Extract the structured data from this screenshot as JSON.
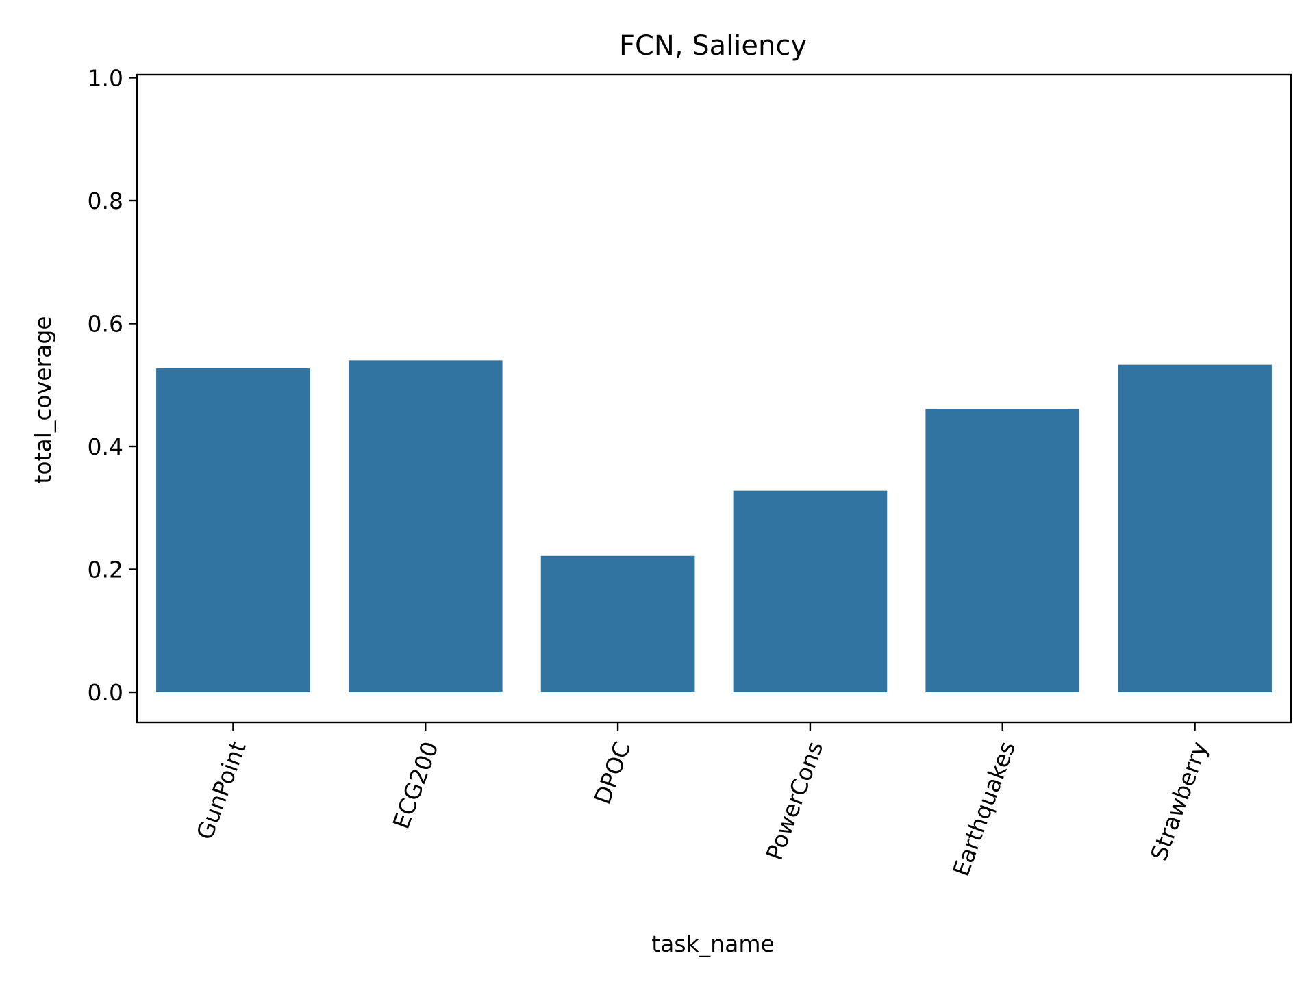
{
  "chart_data": {
    "type": "bar",
    "title": "FCN, Saliency",
    "xlabel": "task_name",
    "ylabel": "total_coverage",
    "categories": [
      "GunPoint",
      "ECG200",
      "DPOC",
      "PowerCons",
      "Earthquakes",
      "Strawberry"
    ],
    "values": [
      0.527,
      0.54,
      0.222,
      0.328,
      0.461,
      0.533
    ],
    "ylim": [
      -0.049,
      1.005
    ],
    "yticks": [
      0.0,
      0.2,
      0.4,
      0.6,
      0.8,
      1.0
    ],
    "ytick_labels": [
      "0.0",
      "0.2",
      "0.4",
      "0.6",
      "0.8",
      "1.0"
    ],
    "xtick_rotation_deg": 70,
    "grid": false,
    "legend": "none",
    "colors": {
      "bar": "#3274a1"
    }
  }
}
